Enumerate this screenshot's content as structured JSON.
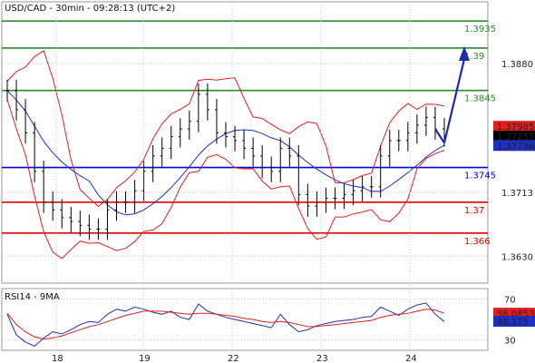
{
  "header": {
    "title": "USD/CAD - 30min - 09:28:13 (UTC+2)"
  },
  "colors": {
    "background": "#ffffff",
    "grid": "#c8c8c8",
    "candles": "#000000",
    "bollinger": "#e02020",
    "moving_average": "#1f2fbf",
    "resistance": "#2e8b2e",
    "support_blue": "#0000e0",
    "support_red": "#e00000",
    "forecast_arrow": "#1c2bb0",
    "ask_box": "#e02020",
    "last_box": "#000000",
    "bid_box": "#1f2fbf",
    "rsi_line": "#1f2fbf",
    "rsi_ma": "#e02020"
  },
  "chart_data": [
    {
      "type": "candlestick",
      "title": "USD/CAD - 30min - 09:28:13 (UTC+2)",
      "x_tick_labels": [
        "18",
        "19",
        "22",
        "23",
        "24"
      ],
      "y_tick_labels": [
        1.388,
        1.3713,
        1.363
      ],
      "ylim": [
        1.3595,
        1.396
      ],
      "grid": true,
      "horizontal_levels": [
        {
          "value": 1.3935,
          "label": "1.3935",
          "color": "#2e8b2e"
        },
        {
          "value": 1.39,
          "label": "1.39",
          "color": "#2e8b2e"
        },
        {
          "value": 1.3845,
          "label": "1.3845",
          "color": "#2e8b2e"
        },
        {
          "value": 1.3745,
          "label": "1.3745",
          "color": "#0000e0"
        },
        {
          "value": 1.37,
          "label": "1.37",
          "color": "#e00000"
        },
        {
          "value": 1.366,
          "label": "1.366",
          "color": "#e00000"
        }
      ],
      "price_boxes": [
        {
          "value": 1.37985,
          "label": "1.37985",
          "color": "#e02020"
        },
        {
          "value": 1.37857,
          "label": "1.37857",
          "color": "#000000"
        },
        {
          "value": 1.37736,
          "label": "1.37736",
          "color": "#1f2fbf"
        }
      ],
      "close_series": [
        1.3845,
        1.382,
        1.379,
        1.374,
        1.37,
        1.369,
        1.368,
        1.3675,
        1.367,
        1.3665,
        1.3665,
        1.369,
        1.37,
        1.37,
        1.3715,
        1.374,
        1.376,
        1.377,
        1.3785,
        1.3795,
        1.3805,
        1.384,
        1.382,
        1.379,
        1.3785,
        1.378,
        1.377,
        1.376,
        1.3745,
        1.374,
        1.377,
        1.376,
        1.371,
        1.3695,
        1.37,
        1.3705,
        1.3705,
        1.371,
        1.3715,
        1.372,
        1.372,
        1.376,
        1.378,
        1.378,
        1.379,
        1.38,
        1.381,
        1.3795,
        1.3786
      ],
      "forecast_arrow": {
        "from_index": 48,
        "from_value": 1.3777,
        "to_value": 1.39
      }
    },
    {
      "type": "line",
      "title": "RSI14 - 9MA",
      "y_tick_labels": [
        70,
        30
      ],
      "ylim": [
        20,
        80
      ],
      "series": [
        {
          "name": "RSI14",
          "values": [
            55,
            35,
            28,
            24,
            32,
            38,
            36,
            40,
            45,
            48,
            47,
            55,
            60,
            58,
            62,
            60,
            57,
            55,
            58,
            52,
            50,
            65,
            58,
            55,
            52,
            50,
            48,
            46,
            44,
            42,
            55,
            45,
            38,
            40,
            44,
            46,
            48,
            49,
            50,
            52,
            53,
            62,
            58,
            54,
            60,
            64,
            66,
            55,
            48
          ]
        },
        {
          "name": "9MA",
          "values": [
            56,
            45,
            38,
            33,
            31,
            32,
            34,
            37,
            40,
            43,
            45,
            48,
            51,
            54,
            56,
            58,
            58,
            58,
            57,
            56,
            55,
            56,
            56,
            55,
            54,
            53,
            51,
            50,
            48,
            47,
            48,
            47,
            45,
            43,
            43,
            44,
            45,
            46,
            47,
            48,
            49,
            52,
            54,
            55,
            56,
            58,
            60,
            59,
            56
          ]
        }
      ],
      "value_boxes": [
        {
          "value": 56.0853,
          "label": "56.0853",
          "color": "#e02020"
        },
        {
          "value": 48.175,
          "label": "48.175",
          "color": "#1f2fbf"
        }
      ]
    }
  ]
}
